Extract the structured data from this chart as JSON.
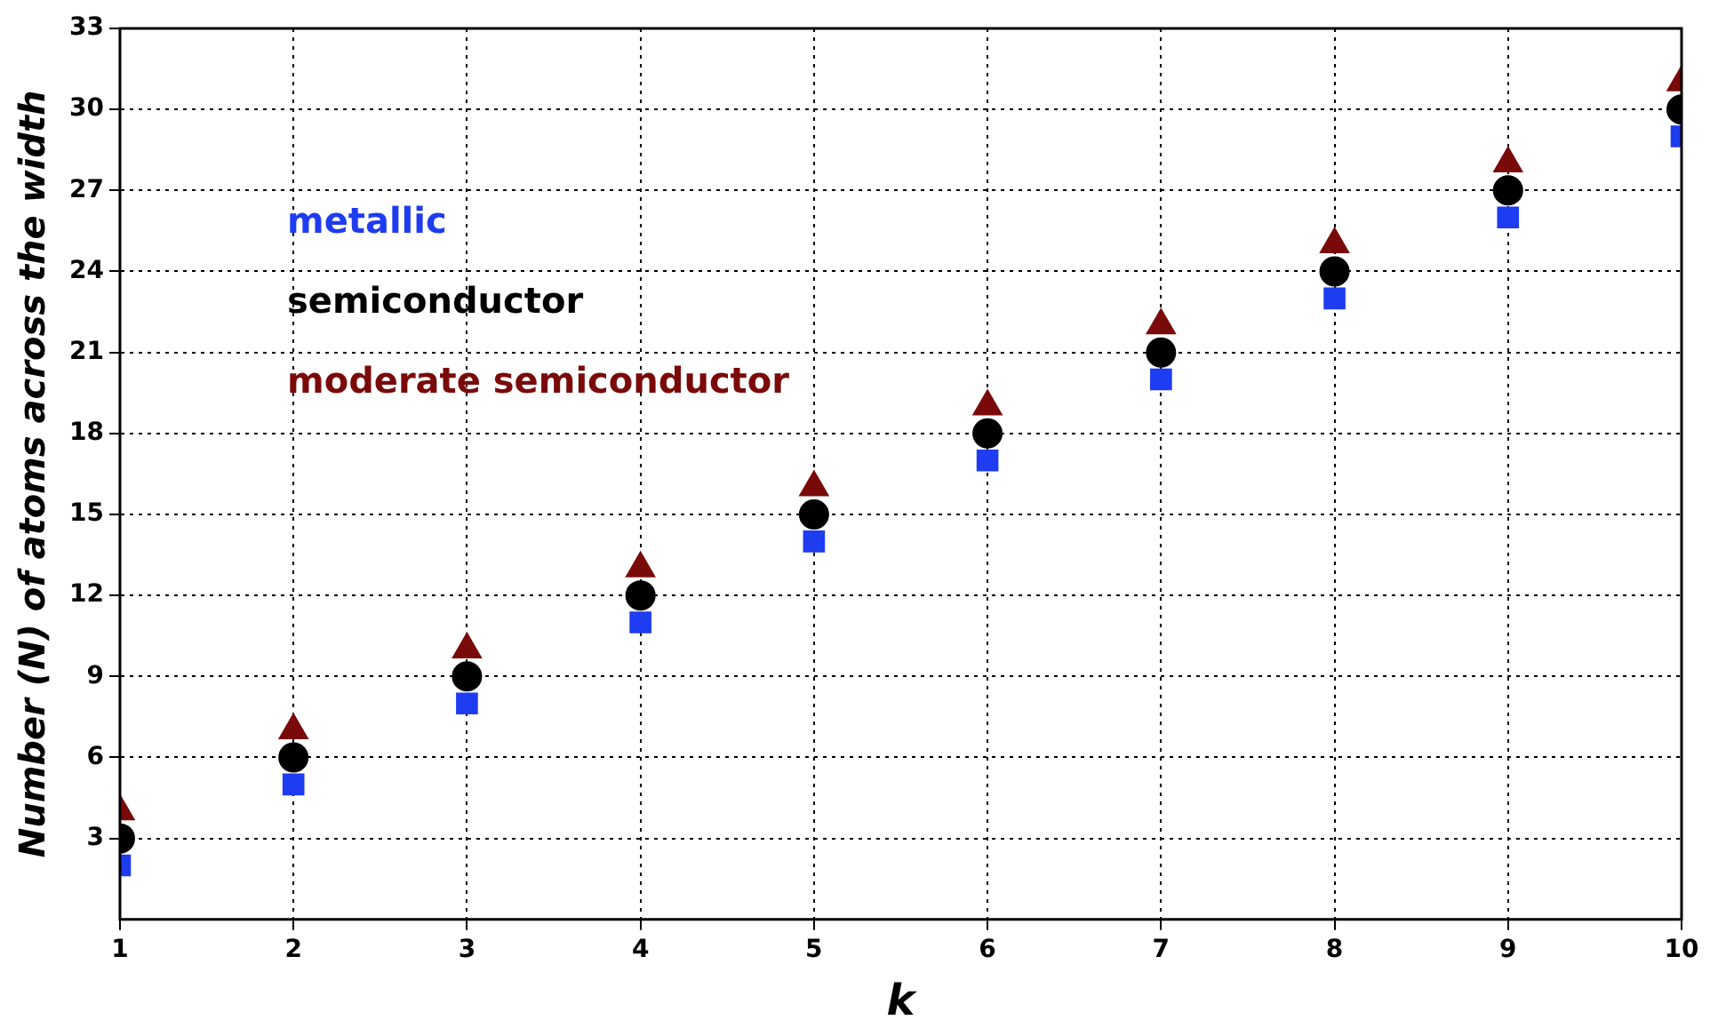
{
  "chart_data": {
    "type": "scatter",
    "xlabel": "k",
    "ylabel": "Number (N) of atoms across the width",
    "x": [
      1,
      2,
      3,
      4,
      5,
      6,
      7,
      8,
      9,
      10
    ],
    "series": [
      {
        "name": "metallic",
        "color": "#1e3cf0",
        "marker": "square",
        "values": [
          2,
          5,
          8,
          11,
          14,
          17,
          20,
          23,
          26,
          29
        ]
      },
      {
        "name": "semiconductor",
        "color": "#000000",
        "marker": "circle",
        "values": [
          3,
          6,
          9,
          12,
          15,
          18,
          21,
          24,
          27,
          30
        ]
      },
      {
        "name": "moderate semiconductor",
        "color": "#7a0a0a",
        "marker": "triangle",
        "values": [
          4,
          7,
          10,
          13,
          16,
          19,
          22,
          25,
          28,
          31
        ]
      }
    ],
    "xlim": [
      1,
      10
    ],
    "xticks": [
      1,
      2,
      3,
      4,
      5,
      6,
      7,
      8,
      9,
      10
    ],
    "ylim": [
      0,
      33
    ],
    "yticks": [
      3,
      6,
      9,
      12,
      15,
      18,
      21,
      24,
      27,
      30,
      33
    ],
    "grid": true,
    "legend": "top left"
  }
}
